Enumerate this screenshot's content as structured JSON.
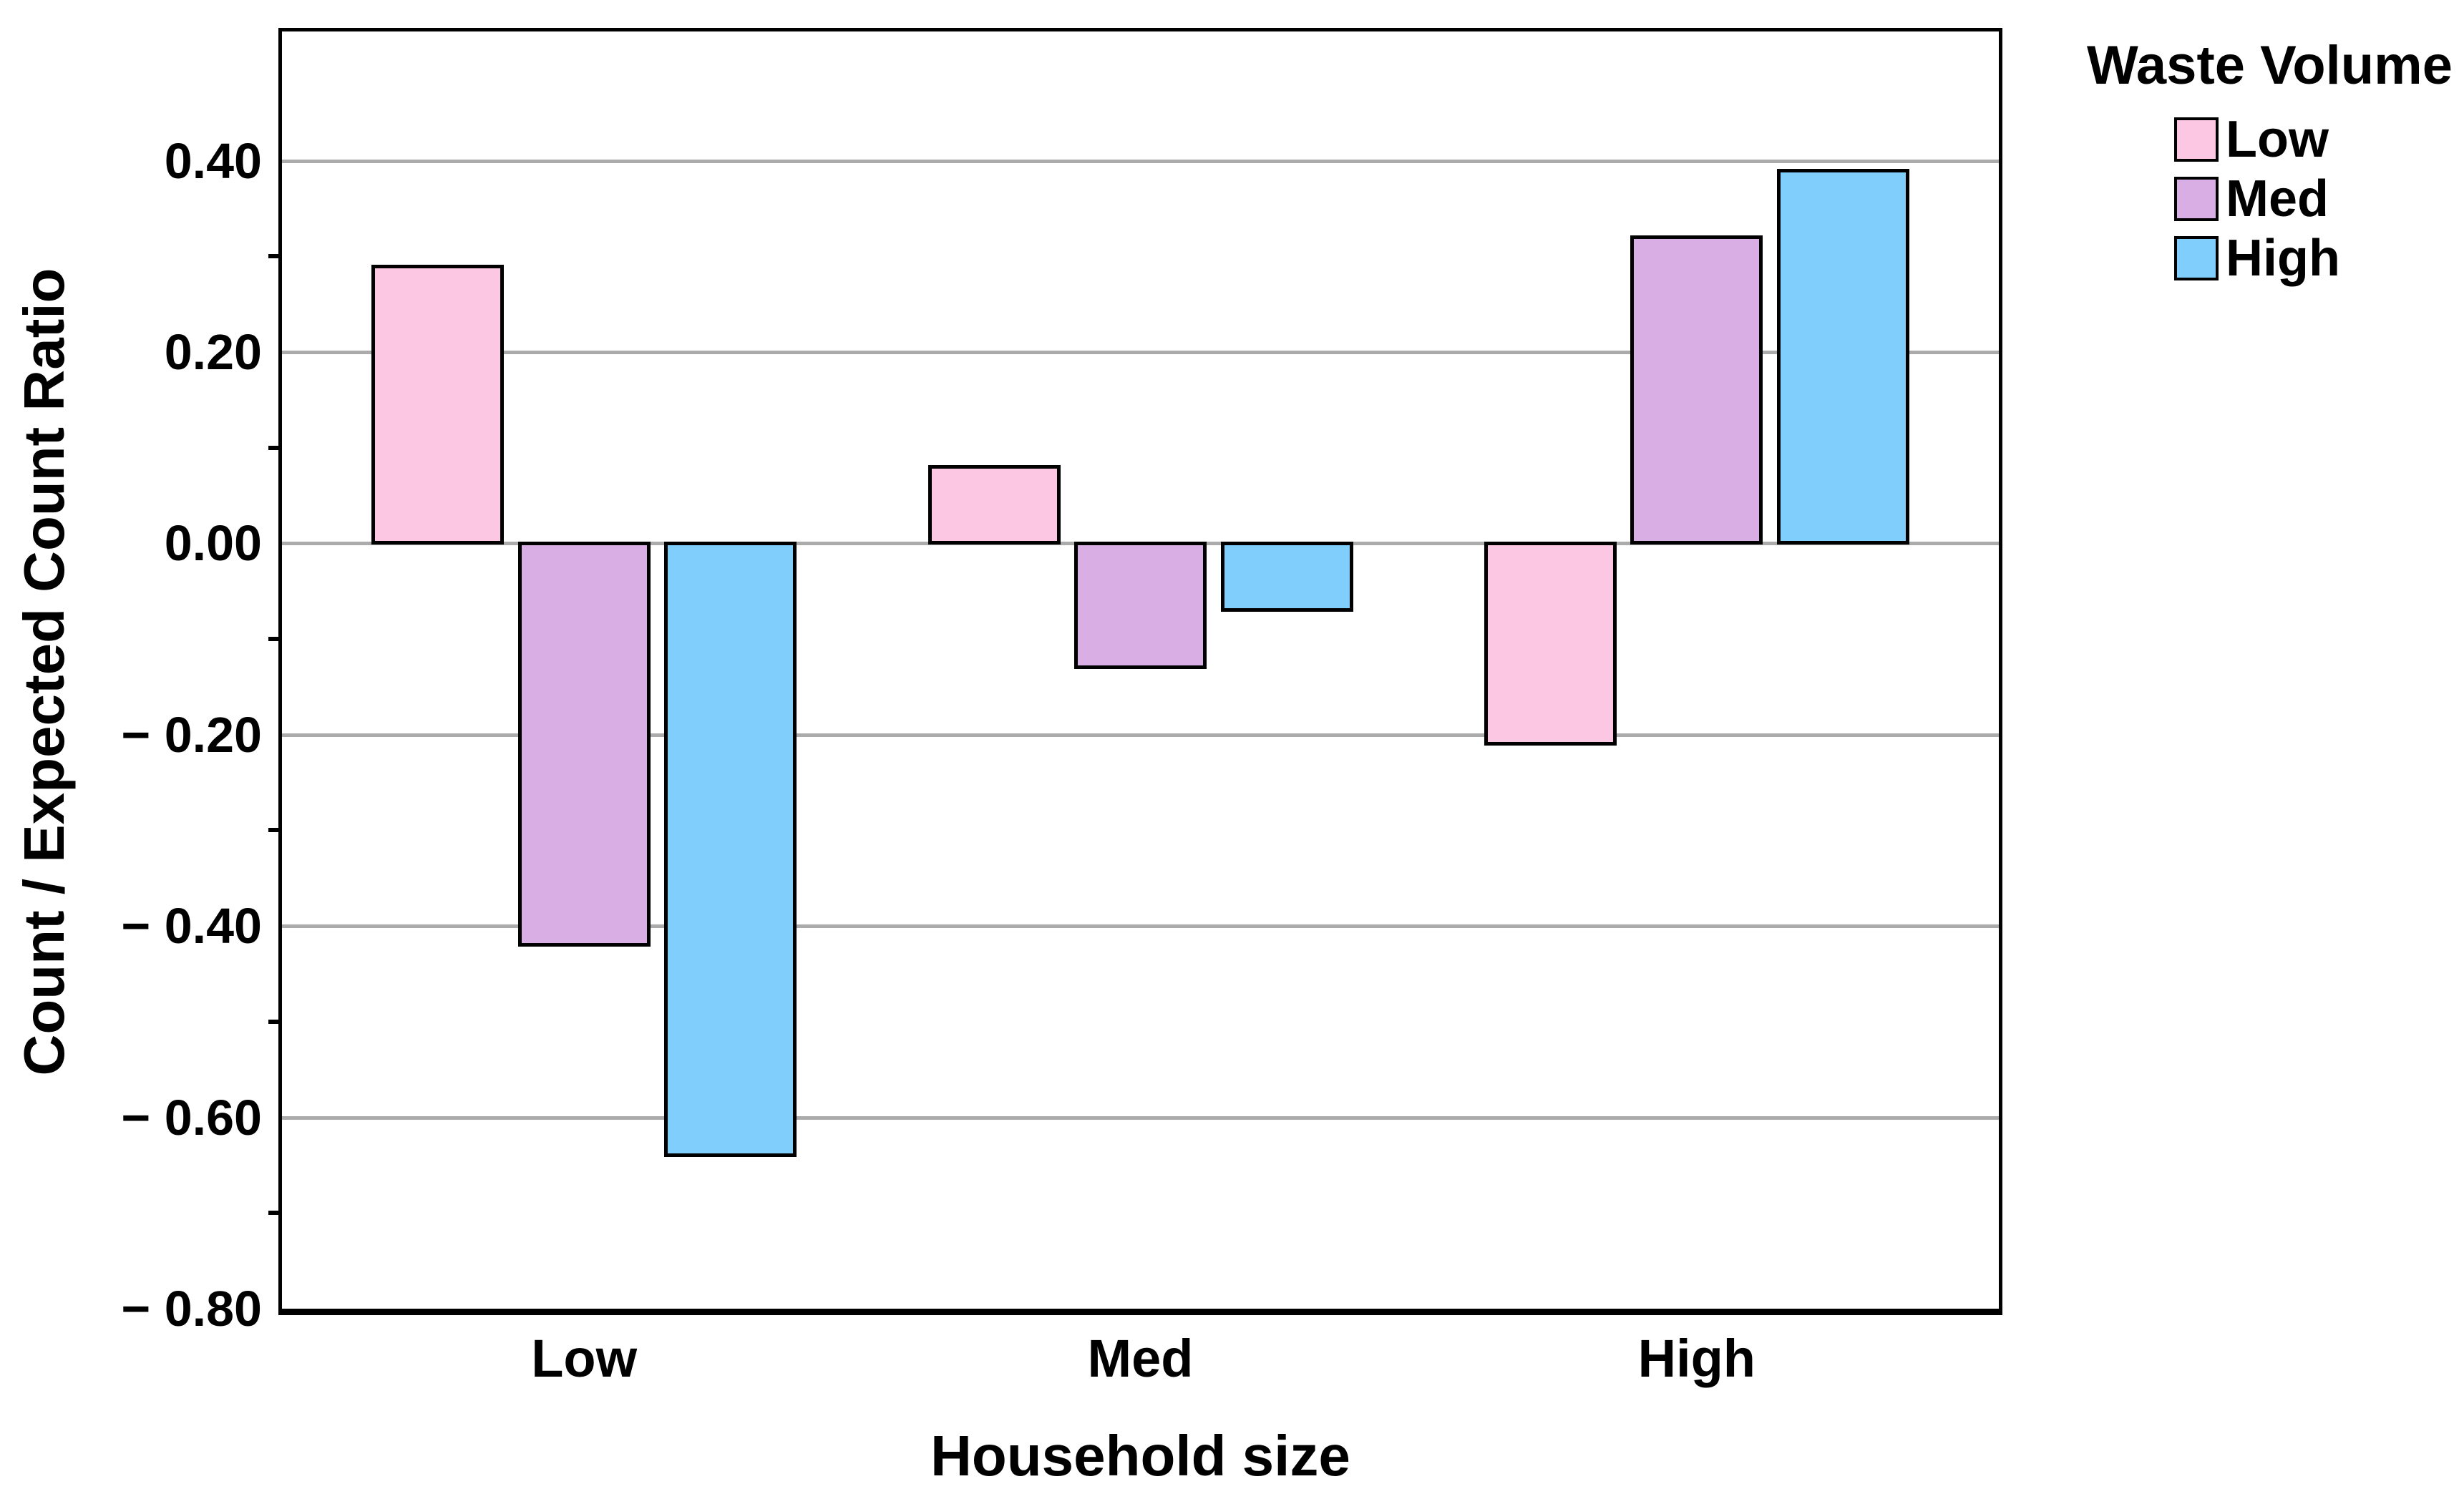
{
  "chart_data": {
    "type": "bar",
    "categories": [
      "Low",
      "Med",
      "High"
    ],
    "series": [
      {
        "name": "Low",
        "color": "#FCC7E2",
        "values": [
          0.29,
          0.08,
          -0.21
        ]
      },
      {
        "name": "Med",
        "color": "#D8AEE4",
        "values": [
          -0.42,
          -0.13,
          0.32
        ]
      },
      {
        "name": "High",
        "color": "#7FCEFB",
        "values": [
          -0.64,
          -0.07,
          0.39
        ]
      }
    ],
    "xlabel": "Household size",
    "ylabel": "Count / Expected Count Ratio",
    "ylim": [
      -0.8,
      0.535
    ],
    "yticks": [
      0.4,
      0.2,
      0.0,
      -0.2,
      -0.4,
      -0.6,
      -0.8
    ],
    "ytick_labels": [
      "0.40",
      "0.20",
      "0.00",
      "− 0.20",
      "− 0.40",
      "− 0.60",
      "− 0.80"
    ],
    "minor_ticks": [
      0.3,
      0.1,
      -0.1,
      -0.3,
      -0.5,
      -0.7
    ],
    "grid": true,
    "legend_title": "Waste Volume",
    "legend_position": "top-right"
  },
  "colors": {
    "gridline": "#ABABAB",
    "frame": "#000000",
    "bar_border": "#000000",
    "background": "#FFFFFF"
  }
}
